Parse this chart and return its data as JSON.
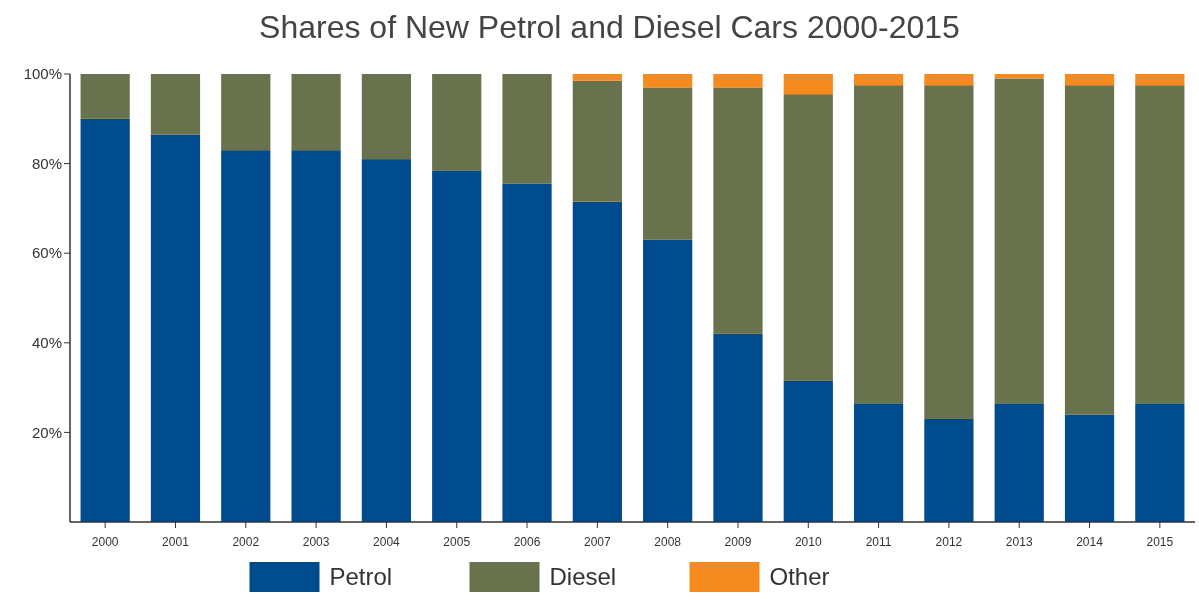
{
  "chart_data": {
    "type": "bar",
    "title": "Shares of New Petrol and Diesel Cars 2000-2015",
    "stacked": true,
    "categories": [
      "2000",
      "2001",
      "2002",
      "2003",
      "2004",
      "2005",
      "2006",
      "2007",
      "2008",
      "2009",
      "2010",
      "2011",
      "2012",
      "2013",
      "2014",
      "2015"
    ],
    "series": [
      {
        "name": "Petrol",
        "color": "#004b8d",
        "values": [
          90,
          86.5,
          83,
          83,
          81,
          78.5,
          75.5,
          71.5,
          63,
          42,
          31.5,
          26.5,
          23,
          26.5,
          24,
          26.5
        ]
      },
      {
        "name": "Diesel",
        "color": "#68724d",
        "values": [
          10,
          13.5,
          17,
          17,
          19,
          21.5,
          24.5,
          27,
          34,
          55,
          64,
          71,
          74.5,
          72.5,
          73.5,
          71
        ]
      },
      {
        "name": "Other",
        "color": "#f58a1f",
        "values": [
          0,
          0,
          0,
          0,
          0,
          0,
          0,
          1.5,
          3,
          3,
          4.5,
          2.5,
          2.5,
          1,
          2.5,
          2.5
        ]
      }
    ],
    "ylim": [
      0,
      100
    ],
    "yticks": [
      {
        "value": 20,
        "label": "20%"
      },
      {
        "value": 40,
        "label": "40%"
      },
      {
        "value": 60,
        "label": "60%"
      },
      {
        "value": 80,
        "label": "80%"
      },
      {
        "value": 100,
        "label": "100%"
      }
    ],
    "grid": false,
    "legend": "bottom"
  }
}
